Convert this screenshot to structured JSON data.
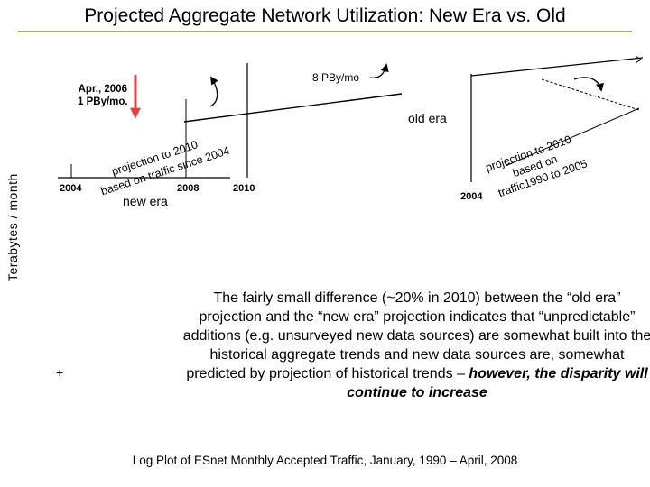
{
  "slide": {
    "title": "Projected Aggregate Network Utilization: New Era vs. Old",
    "y_axis_label": "Terabytes / month",
    "callout_apr": "Apr., 2006\n1 PBy/mo.",
    "callout_8pb": "8 PBy/mo",
    "label_old_era": "old era",
    "label_new_era": "new era",
    "proj_new_1": "projection to 2010",
    "proj_new_2": "based on traffic since 2004",
    "proj_old_1": "projection to 2010",
    "proj_old_2": "based on",
    "proj_old_3": "traffic1990 to 2005",
    "x_ticks": {
      "t2004_left": "2004",
      "t2008": "2008",
      "t2010": "2010",
      "t2004_right": "2004"
    },
    "plus_mark": "+",
    "paragraph_main": "The fairly small difference (~20% in 2010) between the “old era” projection and the “new era” projection indicates that “unpredictable” additions (e.g. unsurveyed new data sources) are somewhat built into the historical aggregate trends and new data sources are, somewhat predicted by projection of historical trends – ",
    "paragraph_emphasis": "however, the disparity will continue to increase",
    "caption": "Log Plot of ESnet Monthly Accepted Traffic, January, 1990 – April, 2008",
    "colors": {
      "red_arrow": "#e84040",
      "title_rule": "#b0b050"
    }
  }
}
